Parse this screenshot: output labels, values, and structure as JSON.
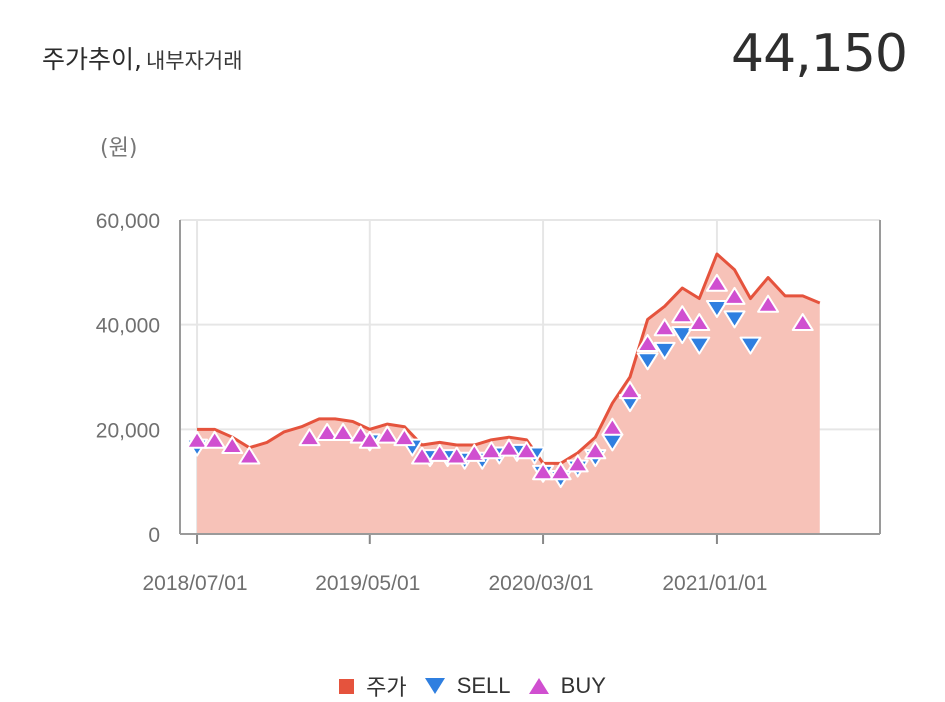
{
  "header": {
    "title": "주가추이,",
    "subtitle": "내부자거래",
    "current_price": "44,150"
  },
  "colors": {
    "price": "#e5533d",
    "price_fill": "#f7c2b8",
    "sell": "#2f7fe0",
    "buy": "#d04fd0"
  },
  "chart_data": {
    "type": "area",
    "unit_label": "(원)",
    "ylim": [
      0,
      60000
    ],
    "yticks": [
      0,
      20000,
      40000,
      60000
    ],
    "ytick_labels": [
      "0",
      "20,000",
      "40,000",
      "60,000"
    ],
    "xlim": [
      "2018-06-01",
      "2021-10-15"
    ],
    "xticks": [
      "2018-07-01",
      "2019-05-01",
      "2020-03-01",
      "2021-01-01"
    ],
    "xtick_labels": [
      "2018/07/01",
      "2019/05/01",
      "2020/03/01",
      "2021/01/01"
    ],
    "grid": true,
    "legend_position": "bottom",
    "legend": [
      "주가",
      "SELL",
      "BUY"
    ],
    "series": [
      {
        "name": "주가",
        "type": "area",
        "x": [
          "2018-07-01",
          "2018-08-01",
          "2018-09-01",
          "2018-10-01",
          "2018-11-01",
          "2018-12-01",
          "2019-01-01",
          "2019-02-01",
          "2019-03-01",
          "2019-04-01",
          "2019-05-01",
          "2019-06-01",
          "2019-07-01",
          "2019-08-01",
          "2019-09-01",
          "2019-10-01",
          "2019-11-01",
          "2019-12-01",
          "2020-01-01",
          "2020-02-01",
          "2020-03-01",
          "2020-04-01",
          "2020-05-01",
          "2020-06-01",
          "2020-07-01",
          "2020-08-01",
          "2020-09-01",
          "2020-10-01",
          "2020-11-01",
          "2020-12-01",
          "2021-01-01",
          "2021-02-01",
          "2021-03-01",
          "2021-04-01",
          "2021-05-01",
          "2021-06-01",
          "2021-07-01"
        ],
        "y": [
          20000,
          20000,
          18500,
          16500,
          17500,
          19500,
          20500,
          22000,
          22000,
          21500,
          20000,
          21000,
          20500,
          17000,
          17500,
          17000,
          17000,
          18000,
          18500,
          18000,
          13500,
          13500,
          15500,
          18500,
          25000,
          30000,
          41000,
          43500,
          47000,
          45000,
          53500,
          50500,
          45000,
          49000,
          45500,
          45500,
          44150
        ]
      },
      {
        "name": "SELL",
        "type": "scatter",
        "marker": "triangle-down",
        "x": [
          "2018-07-01",
          "2019-05-01",
          "2019-07-15",
          "2019-08-15",
          "2019-09-15",
          "2019-10-15",
          "2019-11-15",
          "2019-12-15",
          "2020-01-15",
          "2020-02-15",
          "2020-03-01",
          "2020-04-01",
          "2020-05-01",
          "2020-06-01",
          "2020-07-01",
          "2020-08-01",
          "2020-09-01",
          "2020-10-01",
          "2020-11-01",
          "2020-12-01",
          "2021-01-01",
          "2021-02-01",
          "2021-03-01"
        ],
        "y": [
          16500,
          17500,
          16500,
          14500,
          14500,
          14000,
          14000,
          15000,
          15500,
          15000,
          11500,
          10500,
          12500,
          14500,
          17500,
          25000,
          33000,
          35000,
          38000,
          36000,
          43000,
          41000,
          36000
        ]
      },
      {
        "name": "BUY",
        "type": "scatter",
        "marker": "triangle-up",
        "x": [
          "2018-07-01",
          "2018-08-01",
          "2018-09-01",
          "2018-10-01",
          "2019-01-15",
          "2019-02-15",
          "2019-03-15",
          "2019-04-15",
          "2019-05-01",
          "2019-06-01",
          "2019-07-01",
          "2019-08-01",
          "2019-09-01",
          "2019-10-01",
          "2019-11-01",
          "2019-12-01",
          "2020-01-01",
          "2020-02-01",
          "2020-03-01",
          "2020-04-01",
          "2020-05-01",
          "2020-06-01",
          "2020-07-01",
          "2020-08-01",
          "2020-09-01",
          "2020-10-01",
          "2020-11-01",
          "2020-12-01",
          "2021-01-01",
          "2021-02-01",
          "2021-04-01",
          "2021-06-01"
        ],
        "y": [
          18000,
          18000,
          17000,
          15000,
          18500,
          19500,
          19500,
          19000,
          18000,
          19000,
          18500,
          15000,
          15500,
          15000,
          15500,
          16000,
          16500,
          16000,
          12000,
          12000,
          13500,
          16000,
          20500,
          27500,
          36500,
          39500,
          42000,
          40500,
          48000,
          45500,
          44000,
          40500
        ]
      }
    ]
  }
}
